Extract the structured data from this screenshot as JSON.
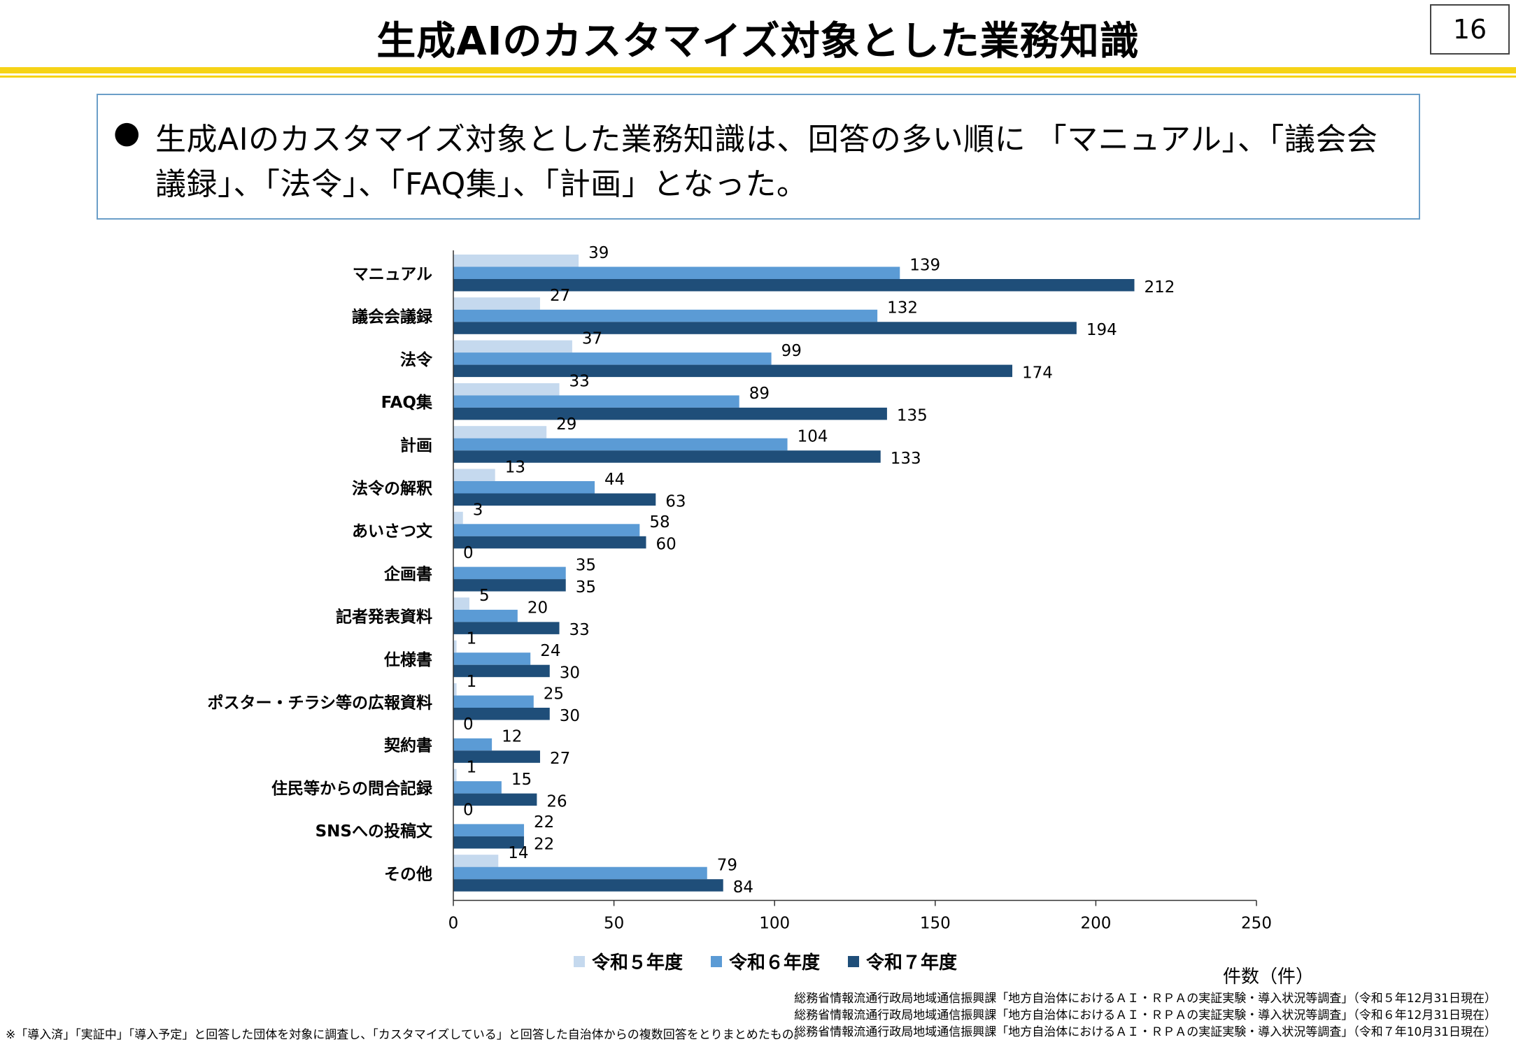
{
  "header": {
    "title": "生成AIのカスタマイズ対象とした業務知識",
    "page_number": "16"
  },
  "summary": {
    "bullet": "●",
    "text": "生成AIのカスタマイズ対象とした業務知識は、回答の多い順に 「マニュアル」、「議会会議録」、「法令」、「FAQ集」、「計画」となった。"
  },
  "chart_data": {
    "type": "bar",
    "orientation": "horizontal",
    "categories": [
      "マニュアル",
      "議会会議録",
      "法令",
      "FAQ集",
      "計画",
      "法令の解釈",
      "あいさつ文",
      "企画書",
      "記者発表資料",
      "仕様書",
      "ポスター・チラシ等の広報資料",
      "契約書",
      "住民等からの問合記録",
      "SNSへの投稿文",
      "その他"
    ],
    "series": [
      {
        "name": "令和５年度",
        "color": "#c5d9ee",
        "values": [
          39,
          27,
          37,
          33,
          29,
          13,
          3,
          0,
          5,
          1,
          1,
          0,
          1,
          0,
          14
        ]
      },
      {
        "name": "令和６年度",
        "color": "#5b9bd5",
        "values": [
          139,
          132,
          99,
          89,
          104,
          44,
          58,
          35,
          20,
          24,
          25,
          12,
          15,
          22,
          79
        ]
      },
      {
        "name": "令和７年度",
        "color": "#1f4e79",
        "values": [
          212,
          194,
          174,
          135,
          133,
          63,
          60,
          35,
          33,
          30,
          30,
          27,
          26,
          22,
          84
        ]
      }
    ],
    "xlim": [
      0,
      250
    ],
    "xticks": [
      0,
      50,
      100,
      150,
      200,
      250
    ],
    "xlabel": "件数（件）",
    "legend_position": "bottom"
  },
  "sources": [
    "総務省情報流通行政局地域通信振興課「地方自治体におけるＡＩ・ＲＰＡの実証実験・導入状況等調査」（令和５年12月31日現在）",
    "総務省情報流通行政局地域通信振興課「地方自治体におけるＡＩ・ＲＰＡの実証実験・導入状況等調査」（令和６年12月31日現在）",
    "総務省情報流通行政局地域通信振興課「地方自治体におけるＡＩ・ＲＰＡの実証実験・導入状況等調査」（令和７年10月31日現在）"
  ],
  "footnote": "※「導入済」「実証中」「導入予定」と回答した団体を対象に調査し、「カスタマイズしている」と回答した自治体からの複数回答をとりまとめたもの。"
}
